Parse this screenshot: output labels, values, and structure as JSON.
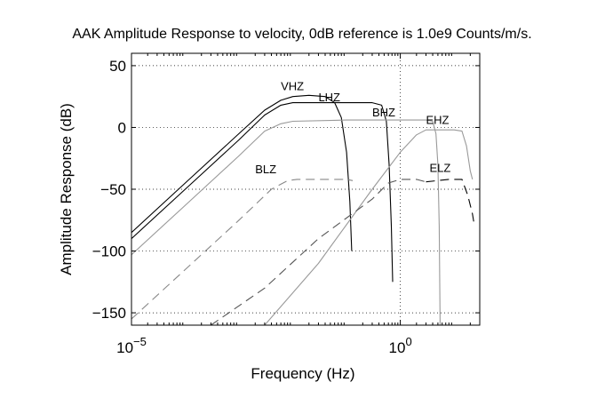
{
  "chart_data": {
    "type": "line",
    "title": "AAK Amplitude Response to velocity, 0dB reference is 1.0e9 Counts/m/s.",
    "xlabel": "Frequency (Hz)",
    "ylabel": "Amplitude Response (dB)",
    "xscale": "log",
    "xlim": [
      1e-05,
      30
    ],
    "ylim": [
      -160,
      60
    ],
    "grid": true,
    "x_ticks": [
      {
        "value": 1e-05,
        "base": "10",
        "exp": "−5"
      },
      {
        "value": 1,
        "base": "10",
        "exp": "0"
      }
    ],
    "y_ticks": [
      {
        "value": 50,
        "label": "50"
      },
      {
        "value": 0,
        "label": "0"
      },
      {
        "value": -50,
        "label": "−50"
      },
      {
        "value": -100,
        "label": "−100"
      },
      {
        "value": -150,
        "label": "−150"
      }
    ],
    "series": [
      {
        "name": "VHZ",
        "color": "#000000",
        "dash": "none",
        "points": [
          [
            1e-05,
            -85
          ],
          [
            0.0001,
            -45
          ],
          [
            0.001,
            -5
          ],
          [
            0.003,
            14
          ],
          [
            0.006,
            22
          ],
          [
            0.01,
            25
          ],
          [
            0.02,
            26
          ],
          [
            0.04,
            25
          ],
          [
            0.06,
            20
          ],
          [
            0.08,
            8
          ],
          [
            0.1,
            -20
          ],
          [
            0.115,
            -60
          ],
          [
            0.125,
            -100
          ]
        ],
        "label": {
          "text": "VHZ",
          "x": 0.006,
          "y": 30
        }
      },
      {
        "name": "LHZ",
        "color": "#000000",
        "dash": "none",
        "points": [
          [
            1e-05,
            -90
          ],
          [
            0.0001,
            -50
          ],
          [
            0.001,
            -10
          ],
          [
            0.003,
            10
          ],
          [
            0.006,
            18
          ],
          [
            0.01,
            20
          ],
          [
            0.05,
            20
          ],
          [
            0.3,
            20
          ],
          [
            0.45,
            18
          ],
          [
            0.55,
            5
          ],
          [
            0.62,
            -30
          ],
          [
            0.68,
            -80
          ],
          [
            0.72,
            -125
          ]
        ],
        "label": {
          "text": "LHZ",
          "x": 0.03,
          "y": 21
        }
      },
      {
        "name": "BHZ",
        "color": "#999999",
        "dash": "none",
        "points": [
          [
            1e-05,
            -103
          ],
          [
            0.0001,
            -63
          ],
          [
            0.001,
            -23
          ],
          [
            0.003,
            -3
          ],
          [
            0.006,
            3
          ],
          [
            0.01,
            5
          ],
          [
            0.1,
            6
          ],
          [
            1,
            6
          ],
          [
            3,
            6
          ],
          [
            4,
            5
          ],
          [
            4.6,
            -5
          ],
          [
            5,
            -30
          ],
          [
            5.3,
            -80
          ],
          [
            5.5,
            -160
          ]
        ],
        "label": {
          "text": "BHZ",
          "x": 0.3,
          "y": 9
        }
      },
      {
        "name": "EHZ",
        "color": "#999999",
        "dash": "none",
        "points": [
          [
            0.003,
            -160
          ],
          [
            0.03,
            -110
          ],
          [
            0.3,
            -50
          ],
          [
            1,
            -20
          ],
          [
            2,
            -6
          ],
          [
            3,
            -2
          ],
          [
            10,
            -2
          ],
          [
            14,
            -3
          ],
          [
            17,
            -15
          ],
          [
            20,
            -35
          ],
          [
            22,
            -42
          ]
        ],
        "label": {
          "text": "EHZ",
          "x": 3,
          "y": 3
        }
      },
      {
        "name": "BLZ",
        "color": "#888888",
        "dash": "10,6",
        "points": [
          [
            1e-05,
            -155
          ],
          [
            0.0001,
            -115
          ],
          [
            0.001,
            -75
          ],
          [
            0.004,
            -50
          ],
          [
            0.008,
            -43
          ],
          [
            0.012,
            -42
          ],
          [
            0.1,
            -42
          ],
          [
            0.13,
            -43
          ]
        ],
        "label": {
          "text": "BLZ",
          "x": 0.002,
          "y": -37
        }
      },
      {
        "name": "BLZ-tail",
        "color": "#555555",
        "dash": "10,6",
        "points": [
          [
            0.0003,
            -160
          ],
          [
            0.003,
            -130
          ],
          [
            0.03,
            -90
          ],
          [
            0.3,
            -58
          ],
          [
            0.6,
            -45
          ],
          [
            1,
            -42
          ],
          [
            2,
            -42
          ],
          [
            3,
            -44
          ]
        ],
        "label": null
      },
      {
        "name": "ELZ",
        "color": "#000000",
        "dash": "10,6",
        "points": [
          [
            3,
            -44
          ],
          [
            8,
            -42
          ],
          [
            14,
            -42
          ],
          [
            18,
            -55
          ],
          [
            22,
            -70
          ],
          [
            24,
            -80
          ]
        ],
        "label": {
          "text": "ELZ",
          "x": 3.5,
          "y": -36
        }
      }
    ]
  }
}
